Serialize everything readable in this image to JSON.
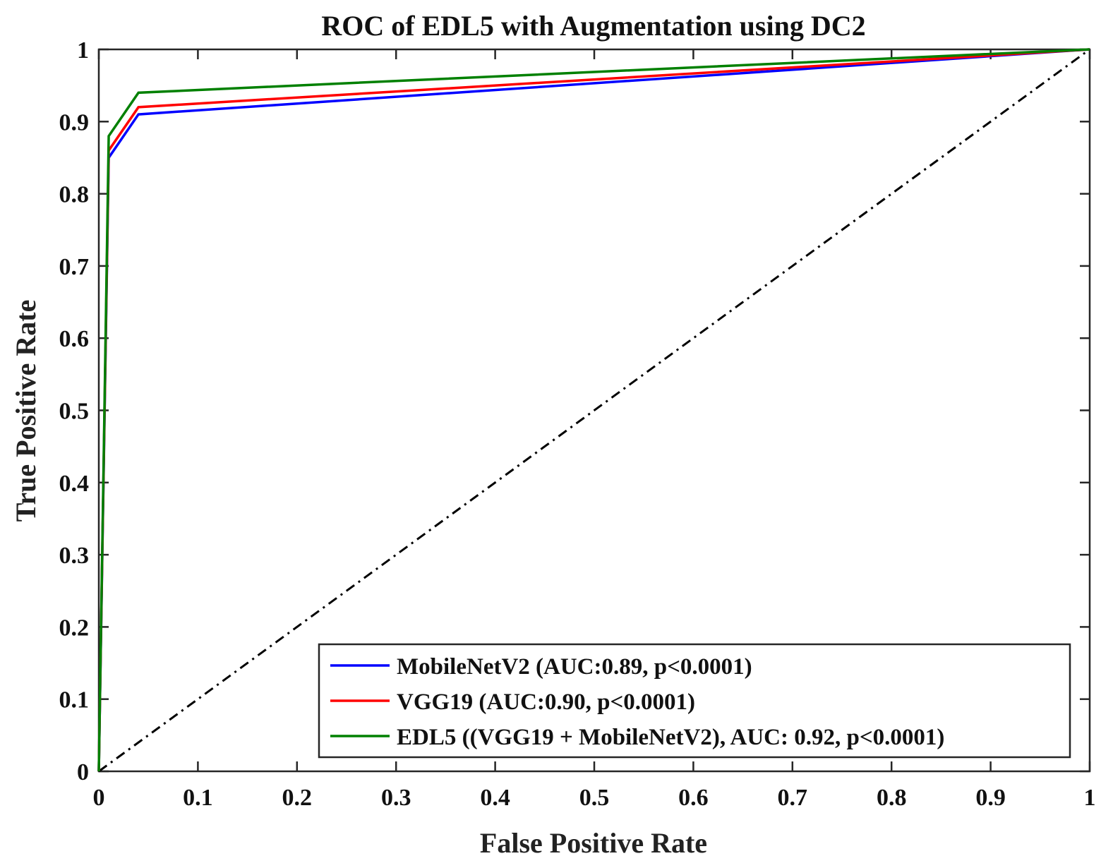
{
  "chart_data": {
    "type": "line",
    "title": "ROC of EDL5 with Augmentation using DC2",
    "xlabel": "False Positive Rate",
    "ylabel": "True Positive Rate",
    "xlim": [
      0,
      1
    ],
    "ylim": [
      0,
      1
    ],
    "x_ticks": [
      "0",
      "0.1",
      "0.2",
      "0.3",
      "0.4",
      "0.5",
      "0.6",
      "0.7",
      "0.8",
      "0.9",
      "1"
    ],
    "y_ticks": [
      "0",
      "0.1",
      "0.2",
      "0.3",
      "0.4",
      "0.5",
      "0.6",
      "0.7",
      "0.8",
      "0.9",
      "1"
    ],
    "grid": false,
    "legend_position": "bottom-right",
    "series": [
      {
        "name": "MobileNetV2 (AUC:0.89, p<0.0001)",
        "color": "#0000ff",
        "points": [
          [
            0,
            0
          ],
          [
            0.01,
            0.85
          ],
          [
            0.04,
            0.91
          ],
          [
            1,
            1
          ]
        ]
      },
      {
        "name": "VGG19 (AUC:0.90, p<0.0001)",
        "color": "#ff0000",
        "points": [
          [
            0,
            0
          ],
          [
            0.01,
            0.86
          ],
          [
            0.04,
            0.92
          ],
          [
            1,
            1
          ]
        ]
      },
      {
        "name": "EDL5 ((VGG19 + MobileNetV2), AUC: 0.92, p<0.0001)",
        "color": "#008000",
        "points": [
          [
            0,
            0
          ],
          [
            0.01,
            0.88
          ],
          [
            0.04,
            0.94
          ],
          [
            1,
            1
          ]
        ]
      }
    ],
    "reference_line": {
      "color": "#000000",
      "style": "dash-dot",
      "points": [
        [
          0,
          0
        ],
        [
          1,
          1
        ]
      ]
    }
  }
}
